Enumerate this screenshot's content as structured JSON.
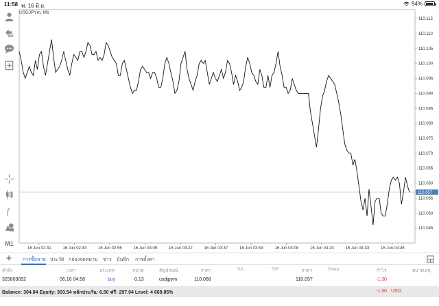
{
  "status_bar": {
    "time": "11:58",
    "date": "พ. 16 มิ.ย.",
    "battery": "94%",
    "battery_fraction": 0.94
  },
  "chart": {
    "title": "USDJPYm, M1",
    "current_price_label": "110.057",
    "ylim": [
      110.04,
      110.118
    ]
  },
  "chart_data": {
    "type": "line",
    "title": "USDJPYm, M1",
    "y_tick_labels": [
      "110.115",
      "110.110",
      "110.105",
      "110.100",
      "110.095",
      "110.090",
      "110.085",
      "110.080",
      "110.075",
      "110.070",
      "110.065",
      "110.060",
      "110.055",
      "110.050",
      "110.045"
    ],
    "y_ticks": [
      110.115,
      110.11,
      110.105,
      110.1,
      110.095,
      110.09,
      110.085,
      110.08,
      110.075,
      110.07,
      110.065,
      110.06,
      110.055,
      110.05,
      110.045
    ],
    "x_tick_labels": [
      "16 Jun 02:31",
      "16 Jun 02:43",
      "16 Jun 02:55",
      "16 Jun 03:09",
      "16 Jun 03:22",
      "16 Jun 03:37",
      "16 Jun 03:53",
      "16 Jun 04:08",
      "16 Jun 04:20",
      "16 Jun 04:33",
      "16 Jun 04:46"
    ],
    "ylim": [
      110.04,
      110.118
    ],
    "current_price": 110.057,
    "values": [
      110.104,
      110.101,
      110.097,
      110.095,
      110.097,
      110.099,
      110.097,
      110.096,
      110.101,
      110.098,
      110.103,
      110.104,
      110.099,
      110.096,
      110.1,
      110.104,
      110.108,
      110.102,
      110.097,
      110.098,
      110.099,
      110.101,
      110.104,
      110.101,
      110.098,
      110.096,
      110.1,
      110.103,
      110.102,
      110.101,
      110.104,
      110.104,
      110.102,
      110.104,
      110.107,
      110.106,
      110.103,
      110.103,
      110.104,
      110.101,
      110.102,
      110.101,
      110.103,
      110.107,
      110.106,
      110.104,
      110.102,
      110.101,
      110.1,
      110.096,
      110.096,
      110.1,
      110.101,
      110.098,
      110.095,
      110.092,
      110.09,
      110.091,
      110.091,
      110.094,
      110.098,
      110.099,
      110.098,
      110.097,
      110.097,
      110.095,
      110.097,
      110.097,
      110.095,
      110.092,
      110.092,
      110.095,
      110.1,
      110.102,
      110.1,
      110.097,
      110.094,
      110.09,
      110.091,
      110.094,
      110.1,
      110.102,
      110.104,
      110.098,
      110.095,
      110.093,
      110.091,
      110.094,
      110.096,
      110.1,
      110.101,
      110.1,
      110.101,
      110.097,
      110.093,
      110.095,
      110.097,
      110.095,
      110.094,
      110.096,
      110.098,
      110.095,
      110.097,
      110.101,
      110.1,
      110.097,
      110.093,
      110.096,
      110.094,
      110.091,
      110.092,
      110.094,
      110.099,
      110.102,
      110.1,
      110.097,
      110.096,
      110.094,
      110.093,
      110.098,
      110.096,
      110.092,
      110.092,
      110.096,
      110.092,
      110.096,
      110.097,
      110.1,
      110.104,
      110.099,
      110.096,
      110.092,
      110.092,
      110.09,
      110.091,
      110.095,
      110.093,
      110.091,
      110.09,
      110.09,
      110.09,
      110.09,
      110.09,
      110.09,
      110.084,
      110.08,
      110.076,
      110.072,
      110.078,
      110.085,
      110.089,
      110.091,
      110.094,
      110.096,
      110.095,
      110.094,
      110.093,
      110.09,
      110.087,
      110.083,
      110.078,
      110.073,
      110.071,
      110.07,
      110.07,
      110.066,
      110.068,
      110.064,
      110.059,
      110.054,
      110.051,
      110.055,
      110.049,
      110.058,
      110.052,
      110.046,
      110.054,
      110.055,
      110.055,
      110.05,
      110.049,
      110.049,
      110.053,
      110.058,
      110.061,
      110.062,
      110.061,
      110.062,
      110.06,
      110.053,
      110.057,
      110.062,
      110.059,
      110.057
    ]
  },
  "tabs": [
    "การซื้อขาย",
    "ประวัติ",
    "กล่องจดหมาย",
    "ข่าว",
    "บันทึก",
    "การตั้งค่า"
  ],
  "table": {
    "headers": [
      "คำสั่ง",
      "เวลา",
      "ประเภท",
      "ขนาด",
      "สัญลักษณ์",
      "ราคา",
      "S/L",
      "T/P",
      "ราคา",
      "Swap",
      "กำไร",
      "หมายเหตุ"
    ],
    "row": {
      "order": "325809092",
      "time": "06.16 04:58",
      "type": "buy",
      "size": "0.13",
      "symbol": "usdjpym",
      "open_price": "110.068",
      "current_price": "110.057",
      "profit": "-1.30"
    }
  },
  "balance": {
    "summary": "Balance: 304.84 Equity: 303.54 หลักประกัน: 6.50 ฟรี: 297.04 Level: 4 669.85%",
    "profit": "-1.30",
    "currency": "USD"
  },
  "colors": {
    "accent": "#2d6fd3",
    "loss": "#d92b2b",
    "price_label_bg": "#4a7fb5"
  },
  "icons": [
    "wifi-icon",
    "battery-icon",
    "account-icon",
    "trade-icon",
    "chat-icon",
    "new-order-icon",
    "crosshair-icon",
    "candle-icon",
    "indicator-icon",
    "objects-icon",
    "add-icon",
    "layout-icon"
  ],
  "toolbar": {
    "timeframe": "M1"
  }
}
